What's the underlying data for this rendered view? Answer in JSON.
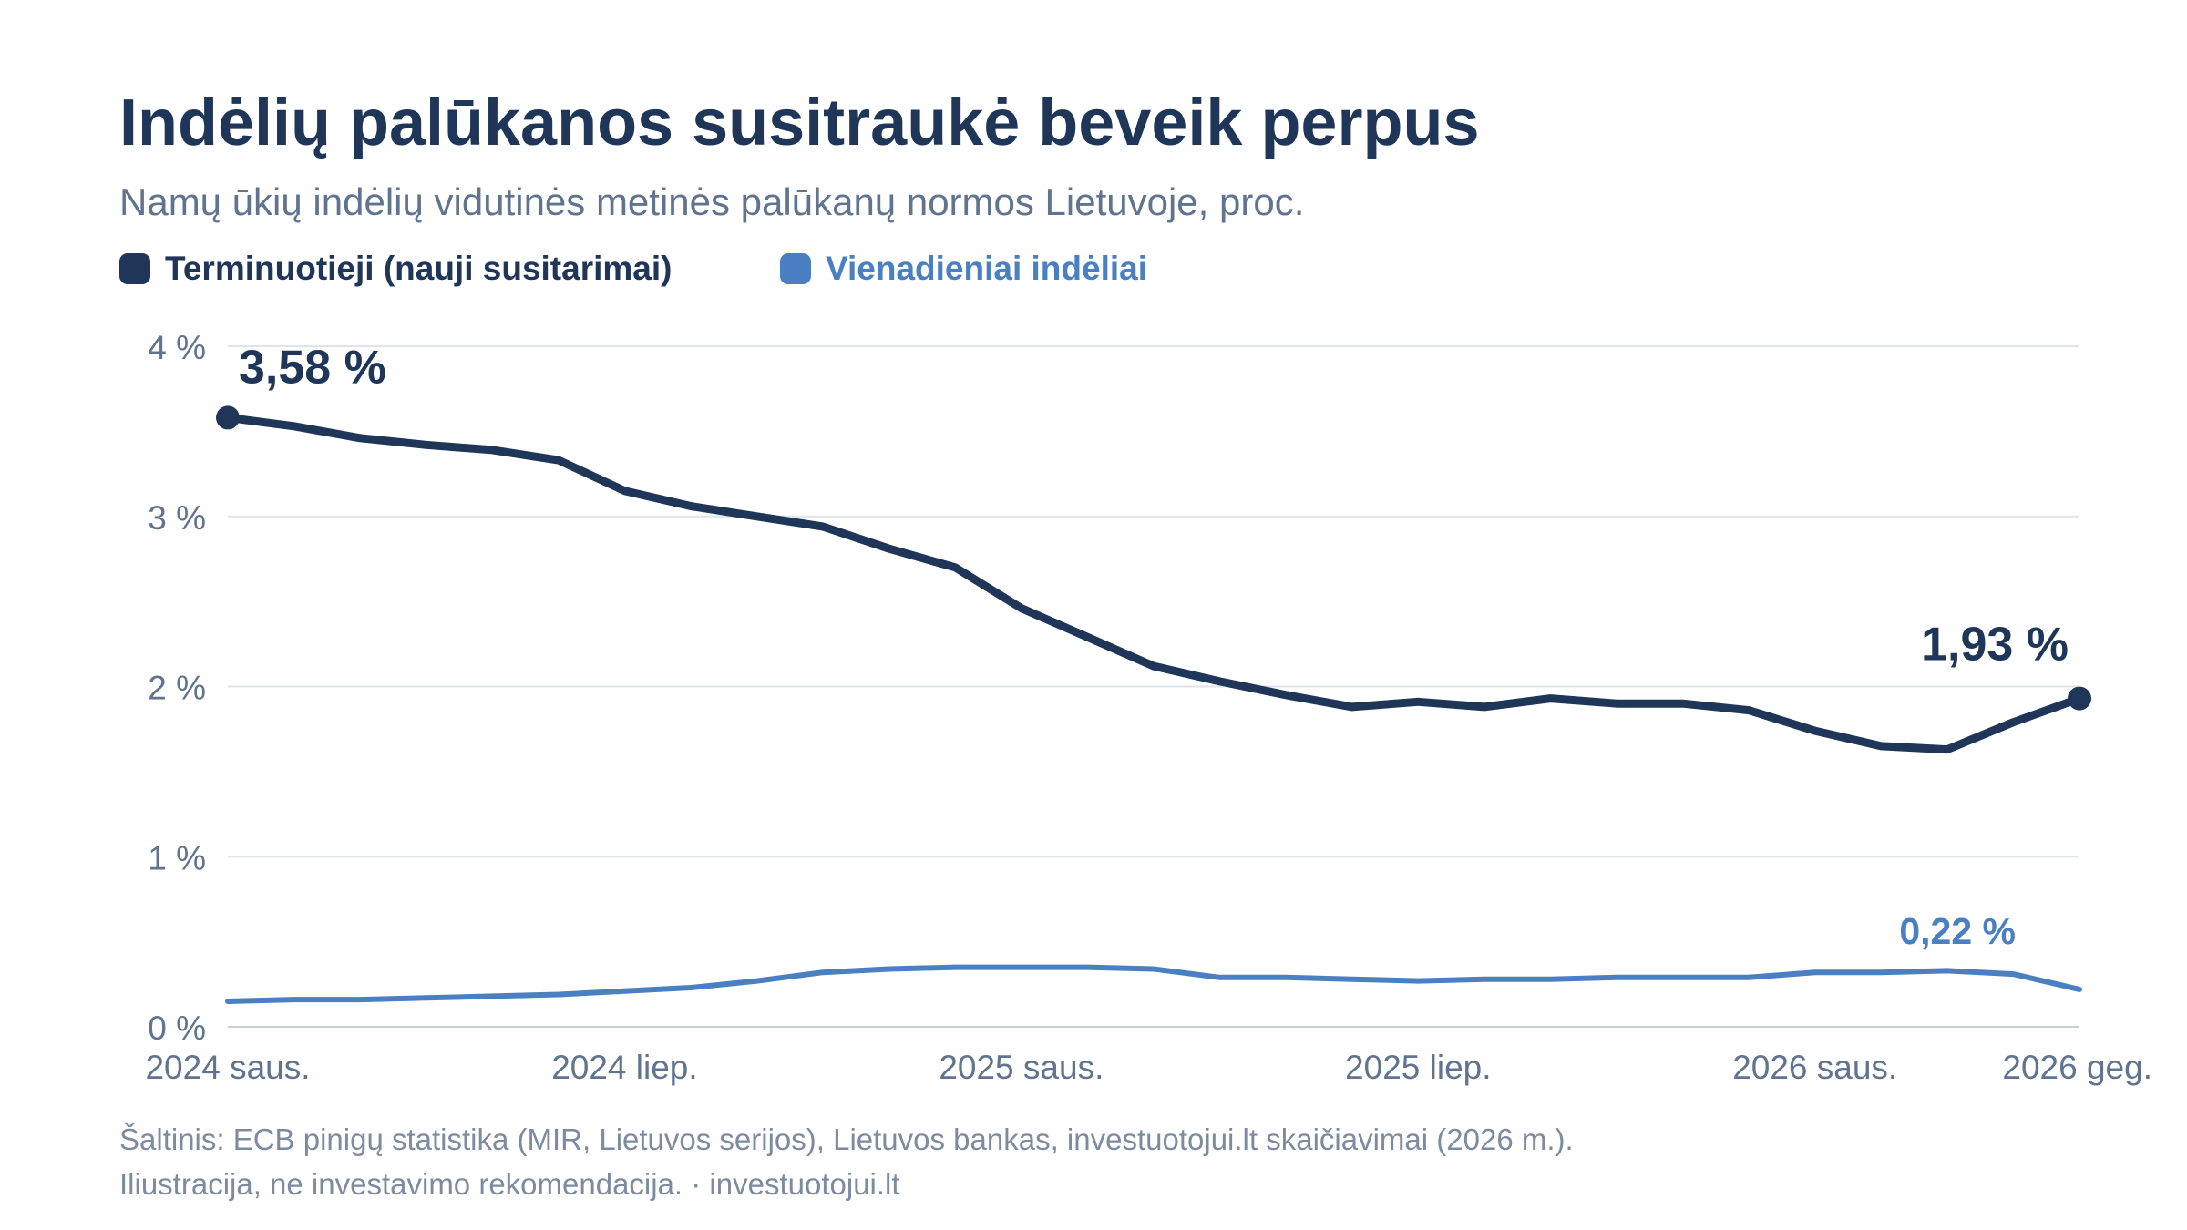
{
  "header": {
    "title": "Indėlių palūkanos susitraukė beveik perpus",
    "subtitle": "Namų ūkių indėlių vidutinės metinės palūkanų normos Lietuvoje, proc."
  },
  "legend": [
    {
      "label": "Terminuotieji (nauji susitarimai)",
      "color": "#1f3659"
    },
    {
      "label": "Vienadieniai indėliai",
      "color": "#4a7fc1"
    }
  ],
  "footer": {
    "source": "Šaltinis: ECB pinigų statistika (MIR, Lietuvos serijos), Lietuvos bankas, investuotojui.lt skaičiavimai (2026 m.).",
    "note": "Iliustracija, ne investavimo rekomendacija. · investuotojui.lt"
  },
  "chart_data": {
    "type": "line",
    "xlabel": "",
    "ylabel": "",
    "ylim": [
      0,
      4
    ],
    "yticks": [
      {
        "value": 0,
        "label": "0 %"
      },
      {
        "value": 1,
        "label": "1 %"
      },
      {
        "value": 2,
        "label": "2 %"
      },
      {
        "value": 3,
        "label": "3 %"
      },
      {
        "value": 4,
        "label": "4 %"
      }
    ],
    "x": [
      "2024-01",
      "2024-02",
      "2024-03",
      "2024-04",
      "2024-05",
      "2024-06",
      "2024-07",
      "2024-08",
      "2024-09",
      "2024-10",
      "2024-11",
      "2024-12",
      "2025-01",
      "2025-02",
      "2025-03",
      "2025-04",
      "2025-05",
      "2025-06",
      "2025-07",
      "2025-08",
      "2025-09",
      "2025-10",
      "2025-11",
      "2025-12",
      "2026-01",
      "2026-02",
      "2026-03",
      "2026-04",
      "2026-05"
    ],
    "xticks": [
      {
        "index": 0,
        "label": "2024 saus."
      },
      {
        "index": 6,
        "label": "2024 liep."
      },
      {
        "index": 12,
        "label": "2025 saus."
      },
      {
        "index": 18,
        "label": "2025 liep."
      },
      {
        "index": 24,
        "label": "2026 saus."
      },
      {
        "index": 28,
        "label": "2026 geg."
      }
    ],
    "grid": true,
    "legend_position": "top-left",
    "series": [
      {
        "name": "Terminuotieji (nauji susitarimai)",
        "color": "#1f3659",
        "values": [
          3.58,
          3.53,
          3.46,
          3.42,
          3.39,
          3.33,
          3.15,
          3.06,
          3.0,
          2.94,
          2.81,
          2.7,
          2.46,
          2.29,
          2.12,
          2.03,
          1.95,
          1.88,
          1.91,
          1.88,
          1.93,
          1.9,
          1.9,
          1.86,
          1.74,
          1.65,
          1.63,
          1.79,
          1.93
        ],
        "start_label": "3,58 %",
        "end_label": "1,93 %"
      },
      {
        "name": "Vienadieniai indėliai",
        "color": "#4a7fc1",
        "values": [
          0.15,
          0.16,
          0.16,
          0.17,
          0.18,
          0.19,
          0.21,
          0.23,
          0.27,
          0.32,
          0.34,
          0.35,
          0.35,
          0.35,
          0.34,
          0.29,
          0.29,
          0.28,
          0.27,
          0.28,
          0.28,
          0.29,
          0.29,
          0.29,
          0.32,
          0.32,
          0.33,
          0.31,
          0.22
        ],
        "end_label": "0,22 %"
      }
    ]
  }
}
